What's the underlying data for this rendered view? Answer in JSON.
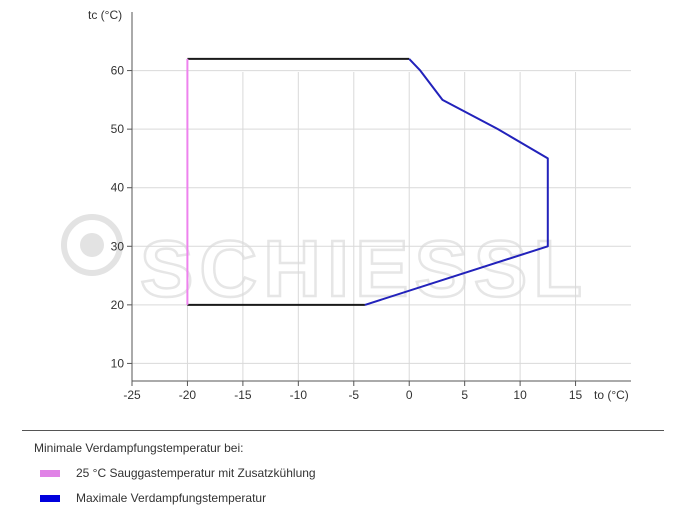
{
  "chart_data": {
    "type": "line",
    "xlabel": "to (°C)",
    "ylabel": "tc (°C)",
    "xlim": [
      -25,
      20
    ],
    "ylim": [
      7,
      70
    ],
    "xticks": [
      -25,
      -20,
      -15,
      -10,
      -5,
      0,
      5,
      10,
      15
    ],
    "yticks": [
      10,
      20,
      30,
      40,
      50,
      60
    ],
    "grid": true,
    "series": [
      {
        "role": "upper boundary",
        "color": "#1a1a1a",
        "points": [
          [
            -20,
            62
          ],
          [
            0,
            62
          ]
        ]
      },
      {
        "role": "lower boundary",
        "color": "#1a1a1a",
        "points": [
          [
            -20,
            20
          ],
          [
            -4,
            20
          ]
        ]
      },
      {
        "name": "25 °C Sauggastemperatur mit Zusatzkühlung",
        "color": "#ee82ee",
        "points": [
          [
            -20,
            20
          ],
          [
            -20,
            62
          ]
        ]
      },
      {
        "name": "Maximale Verdampfungstemperatur",
        "color": "#2222bb",
        "points": [
          [
            0,
            62
          ],
          [
            1,
            60
          ],
          [
            3,
            55
          ],
          [
            8,
            50
          ],
          [
            12.5,
            45
          ],
          [
            12.5,
            30
          ],
          [
            -4,
            20
          ]
        ]
      }
    ]
  },
  "watermark": {
    "text": "SCHIESSL"
  },
  "legend": {
    "title": "Minimale Verdampfungstemperatur bei:",
    "items": [
      {
        "label": "25 °C Sauggastemperatur mit Zusatzkühlung",
        "color": "#e083e6"
      },
      {
        "label": "Maximale Verdampfungstemperatur",
        "color": "#0000dd"
      }
    ]
  }
}
